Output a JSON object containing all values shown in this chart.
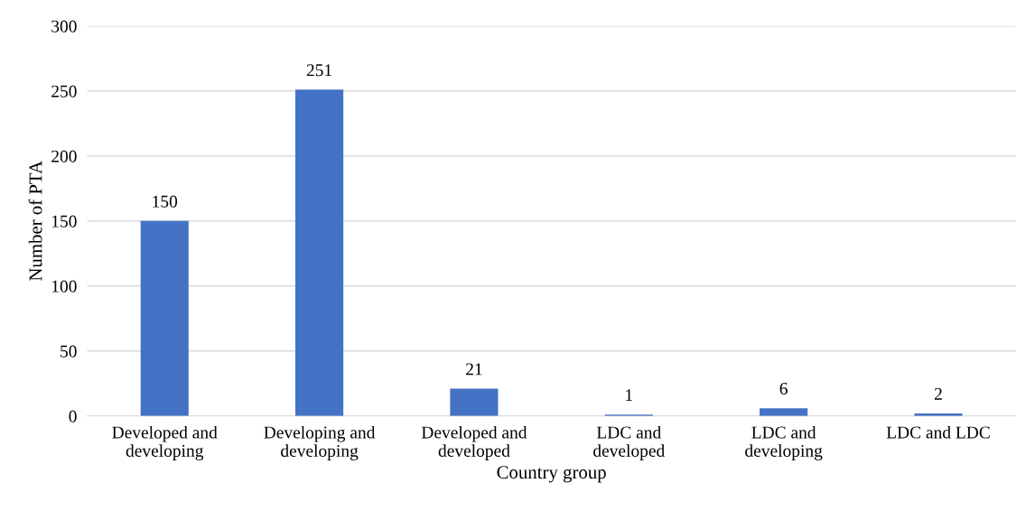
{
  "chart_data": {
    "type": "bar",
    "xlabel": "Country group",
    "ylabel": "Number of PTA",
    "categories": [
      "Developed and\ndeveloping",
      "Developing and\ndeveloping",
      "Developed and\ndeveloped",
      "LDC and\ndeveloped",
      "LDC and\ndeveloping",
      "LDC and LDC"
    ],
    "values": [
      150,
      251,
      21,
      1,
      6,
      2
    ],
    "color": "#4472c4",
    "ylim": [
      0,
      300
    ],
    "yticks": [
      0,
      50,
      100,
      150,
      200,
      250,
      300
    ],
    "grid": "y",
    "data_labels": true
  }
}
